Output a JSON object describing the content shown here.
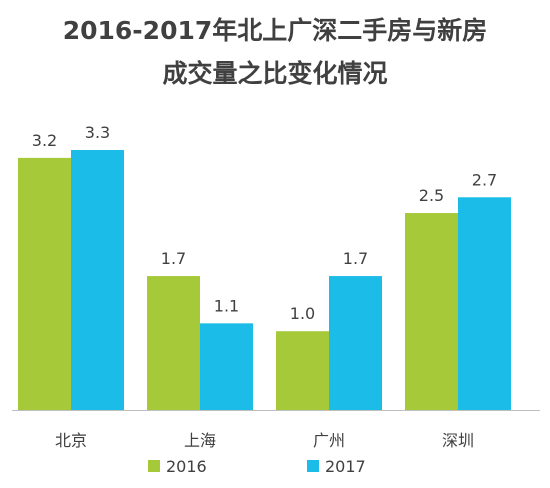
{
  "chart_data": {
    "type": "bar",
    "title": "2016-2017年北上广深二手房与新房",
    "subtitle": "成交量之比变化情况",
    "categories": [
      "北京",
      "上海",
      "广州",
      "深圳"
    ],
    "series": [
      {
        "name": "2016",
        "values": [
          3.2,
          1.7,
          1.0,
          2.5
        ],
        "color": "#a6c93a"
      },
      {
        "name": "2017",
        "values": [
          3.3,
          1.1,
          1.7,
          2.7
        ],
        "color": "#1bbde8"
      }
    ],
    "value_labels": [
      [
        "3.2",
        "1.7",
        "1.0",
        "2.5"
      ],
      [
        "3.3",
        "1.1",
        "1.7",
        "2.7"
      ]
    ],
    "ylim": [
      0,
      3.3
    ],
    "grid": false,
    "legend_position": "bottom"
  }
}
